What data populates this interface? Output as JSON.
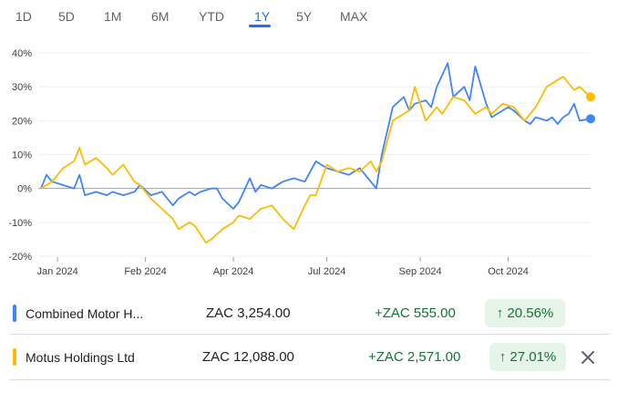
{
  "range_tabs": [
    {
      "label": "1D",
      "active": false
    },
    {
      "label": "5D",
      "active": false
    },
    {
      "label": "1M",
      "active": false
    },
    {
      "label": "6M",
      "active": false
    },
    {
      "label": "YTD",
      "active": false
    },
    {
      "label": "1Y",
      "active": true
    },
    {
      "label": "5Y",
      "active": false
    },
    {
      "label": "MAX",
      "active": false
    }
  ],
  "colors": {
    "accent": "#1a73e8",
    "series_blue": "#4285f4",
    "series_yellow": "#fbbc04",
    "positive": "#137333",
    "positive_bg": "#e6f4ea"
  },
  "chart_data": {
    "type": "line",
    "y_ticks": [
      "40%",
      "30%",
      "20%",
      "10%",
      "0%",
      "-10%",
      "-20%"
    ],
    "y_tick_values": [
      40,
      30,
      20,
      10,
      0,
      -10,
      -20
    ],
    "ylim": [
      -20,
      40
    ],
    "x_ticks": [
      "Jan 2024",
      "Feb 2024",
      "Apr 2024",
      "Jul 2024",
      "Sep 2024",
      "Oct 2024"
    ],
    "x_tick_values": [
      0.03,
      0.19,
      0.35,
      0.52,
      0.69,
      0.85
    ],
    "xlim": [
      0,
      1
    ],
    "baseline": 0,
    "grid": true,
    "series": [
      {
        "name": "Combined Motor H...",
        "color": "#4285f4",
        "x": [
          0,
          0.01,
          0.02,
          0.04,
          0.06,
          0.07,
          0.08,
          0.1,
          0.12,
          0.13,
          0.15,
          0.17,
          0.18,
          0.2,
          0.22,
          0.24,
          0.25,
          0.27,
          0.28,
          0.29,
          0.31,
          0.32,
          0.33,
          0.35,
          0.36,
          0.38,
          0.39,
          0.4,
          0.42,
          0.44,
          0.46,
          0.48,
          0.49,
          0.5,
          0.52,
          0.54,
          0.56,
          0.58,
          0.6,
          0.61,
          0.62,
          0.63,
          0.64,
          0.66,
          0.67,
          0.68,
          0.7,
          0.71,
          0.72,
          0.74,
          0.75,
          0.77,
          0.78,
          0.79,
          0.81,
          0.82,
          0.83,
          0.85,
          0.86,
          0.88,
          0.89,
          0.9,
          0.92,
          0.93,
          0.94,
          0.95,
          0.96,
          0.97,
          0.98,
          1.0
        ],
        "values": [
          0,
          4,
          2,
          1,
          0,
          4,
          -2,
          -1,
          -2,
          -1,
          -2,
          -1,
          1,
          -2,
          -1,
          -5,
          -3,
          -1,
          -2,
          -1,
          0,
          0,
          -3,
          -6,
          -4,
          3,
          -1,
          1,
          0,
          2,
          3,
          2,
          5,
          8,
          6,
          5,
          4,
          6,
          2,
          0,
          10,
          17,
          24,
          27,
          23,
          25,
          26,
          24,
          30,
          37,
          27,
          30,
          26,
          36,
          25,
          21,
          22,
          24,
          23,
          20,
          19,
          21,
          20,
          21,
          19,
          21,
          22,
          25,
          20,
          20.56
        ]
      },
      {
        "name": "Motus Holdings Ltd",
        "color": "#fbbc04",
        "x": [
          0,
          0.02,
          0.04,
          0.06,
          0.07,
          0.08,
          0.1,
          0.12,
          0.13,
          0.15,
          0.17,
          0.18,
          0.2,
          0.22,
          0.24,
          0.25,
          0.27,
          0.28,
          0.3,
          0.31,
          0.33,
          0.35,
          0.36,
          0.38,
          0.4,
          0.42,
          0.44,
          0.46,
          0.48,
          0.49,
          0.5,
          0.52,
          0.54,
          0.56,
          0.58,
          0.6,
          0.61,
          0.62,
          0.63,
          0.64,
          0.66,
          0.67,
          0.68,
          0.7,
          0.72,
          0.73,
          0.75,
          0.77,
          0.79,
          0.81,
          0.82,
          0.84,
          0.86,
          0.88,
          0.9,
          0.92,
          0.94,
          0.95,
          0.96,
          0.97,
          0.98,
          1.0
        ],
        "values": [
          0,
          2,
          6,
          8,
          12,
          7,
          9,
          6,
          4,
          7,
          2,
          1,
          -3,
          -6,
          -9,
          -12,
          -10,
          -11,
          -16,
          -15,
          -12,
          -10,
          -8,
          -9,
          -6,
          -5,
          -9,
          -12,
          -5,
          -2,
          -2,
          7,
          5,
          6,
          5,
          8,
          5,
          8,
          14,
          20,
          22,
          23,
          30,
          20,
          24,
          22,
          27,
          26,
          22,
          24,
          22,
          25,
          24,
          20,
          24,
          30,
          32,
          33,
          31,
          29,
          30,
          27.01
        ]
      }
    ]
  },
  "summary_rows": [
    {
      "name": "Combined Motor H...",
      "price": "ZAC 3,254.00",
      "change": "+ZAC 555.00",
      "percent": "↑ 20.56%",
      "color": "#4285f4",
      "removable": false
    },
    {
      "name": "Motus Holdings Ltd",
      "price": "ZAC 12,088.00",
      "change": "+ZAC 2,571.00",
      "percent": "↑ 27.01%",
      "color": "#fbbc04",
      "removable": true,
      "remove_icon": "close-icon"
    }
  ]
}
